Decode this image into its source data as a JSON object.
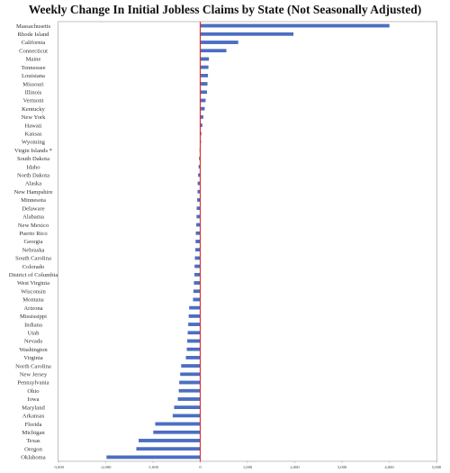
{
  "chart_data": {
    "type": "bar",
    "orientation": "horizontal",
    "title": "Weekly Change In Initial Jobless Claims by State (Not Seasonally Adjusted)",
    "xlabel": "",
    "ylabel": "",
    "xlim": [
      -3000,
      5000
    ],
    "xticks": [
      -3000,
      -2000,
      -1000,
      0,
      1000,
      2000,
      3000,
      4000,
      5000
    ],
    "xtick_labels": [
      "-3,000",
      "-2,000",
      "-1,000",
      "0",
      "1,000",
      "2,000",
      "3,000",
      "4,000",
      "5,000"
    ],
    "grid": false,
    "bar_color": "#4a6fc6",
    "bar_edge_color": "#2e4f9c",
    "zero_line_color": "#e03030",
    "categories": [
      "Massachusetts",
      "Rhode Island",
      "California",
      "Connecticut",
      "Maine",
      "Tennessee",
      "Louisiana",
      "Missouri",
      "Illinois",
      "Vermont",
      "Kentucky",
      "New York",
      "Hawaii",
      "Kansas",
      "Wyoming",
      "Virgin Islands *",
      "South Dakota",
      "Idaho",
      "North Dakota",
      "Alaska",
      "New Hampshire",
      "Minnesota",
      "Delaware",
      "Alabama",
      "New Mexico",
      "Puerto Rico",
      "Georgia",
      "Nebraska",
      "South Carolina",
      "Colorado",
      "District of Columbia",
      "West Virginia",
      "Wisconsin",
      "Montana",
      "Arizona",
      "Mississippi",
      "Indiana",
      "Utah",
      "Nevada",
      "Washington",
      "Virginia",
      "North Carolina",
      "New Jersey",
      "Pennsylvania",
      "Ohio",
      "Iowa",
      "Maryland",
      "Arkansas",
      "Florida",
      "Michigan",
      "Texas",
      "Oregon",
      "Oklahoma"
    ],
    "values": [
      4000,
      1970,
      800,
      550,
      180,
      170,
      160,
      150,
      140,
      110,
      90,
      60,
      40,
      20,
      5,
      -10,
      -20,
      -30,
      -40,
      -50,
      -55,
      -60,
      -70,
      -75,
      -80,
      -90,
      -95,
      -100,
      -110,
      -115,
      -120,
      -130,
      -140,
      -150,
      -230,
      -240,
      -250,
      -260,
      -270,
      -280,
      -300,
      -400,
      -420,
      -440,
      -450,
      -470,
      -550,
      -580,
      -950,
      -990,
      -1300,
      -1350,
      -1980
    ]
  }
}
